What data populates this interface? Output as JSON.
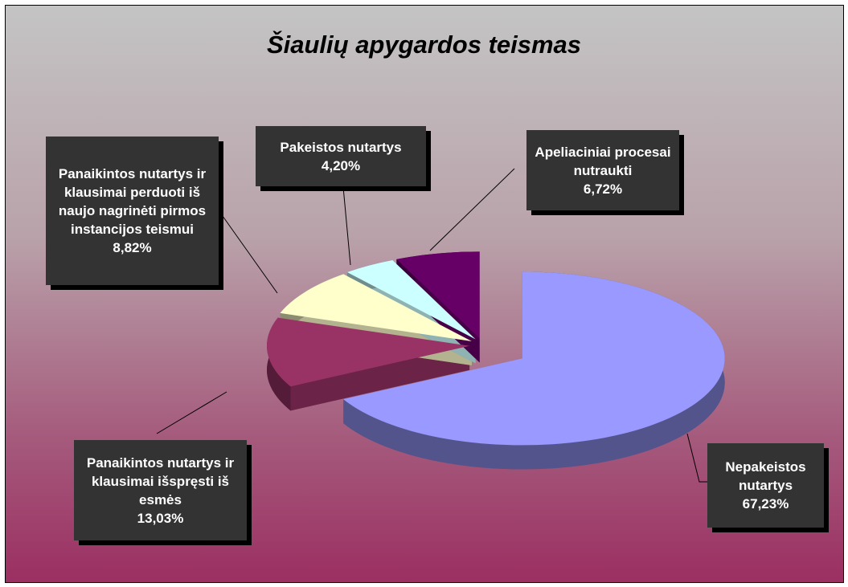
{
  "chart_data": {
    "type": "pie",
    "title": "Šiaulių apygardos teismas",
    "categories": [
      "Nepakeistos nutartys",
      "Panaikintos nutartys ir klausimai išspręsti iš esmės",
      "Panaikintos nutartys ir klausimai perduoti iš naujo nagrinėti pirmos instancijos teismui",
      "Pakeistos nutartys",
      "Apeliaciniai procesai nutraukti"
    ],
    "values": [
      67.23,
      13.03,
      8.82,
      4.2,
      6.72
    ],
    "value_labels": [
      "67,23%",
      "13,03%",
      "8,82%",
      "4,20%",
      "6,72%"
    ],
    "colors": [
      "#9999ff",
      "#993366",
      "#ffffcc",
      "#ccffff",
      "#660066"
    ]
  }
}
